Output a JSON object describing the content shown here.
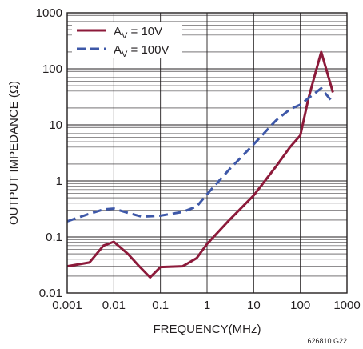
{
  "chart_data": {
    "type": "line",
    "x_scale": "log",
    "y_scale": "log",
    "xlabel": "FREQUENCY(MHz)",
    "ylabel": "OUTPUT IMPEDANCE (Ω)",
    "xlim": [
      0.001,
      1000
    ],
    "ylim": [
      0.01,
      1000
    ],
    "x_ticks": [
      "0.001",
      "0.01",
      "0.1",
      "1",
      "10",
      "100",
      "1000"
    ],
    "y_ticks": [
      "0.01",
      "0.1",
      "1",
      "10",
      "100",
      "1000"
    ],
    "grid": true,
    "legend_position": "top-left",
    "figure_code": "626810 G22",
    "series": [
      {
        "name": "AV = 10V",
        "label_main": "A",
        "label_sub": "V",
        "label_rest": " = 10V",
        "color": "#8c1a3a",
        "style": "solid",
        "points": [
          [
            0.001,
            0.03
          ],
          [
            0.003,
            0.035
          ],
          [
            0.006,
            0.07
          ],
          [
            0.01,
            0.082
          ],
          [
            0.02,
            0.05
          ],
          [
            0.035,
            0.03
          ],
          [
            0.06,
            0.019
          ],
          [
            0.1,
            0.029
          ],
          [
            0.3,
            0.03
          ],
          [
            0.6,
            0.042
          ],
          [
            1,
            0.075
          ],
          [
            3,
            0.2
          ],
          [
            10,
            0.55
          ],
          [
            30,
            1.8
          ],
          [
            60,
            4
          ],
          [
            100,
            6.5
          ],
          [
            150,
            30
          ],
          [
            280,
            200
          ],
          [
            500,
            38
          ]
        ]
      },
      {
        "name": "AV = 100V",
        "label_main": "A",
        "label_sub": "V",
        "label_rest": " = 100V",
        "color": "#3e58a8",
        "style": "dashed",
        "points": [
          [
            0.001,
            0.19
          ],
          [
            0.003,
            0.26
          ],
          [
            0.006,
            0.31
          ],
          [
            0.01,
            0.32
          ],
          [
            0.02,
            0.27
          ],
          [
            0.04,
            0.23
          ],
          [
            0.1,
            0.24
          ],
          [
            0.3,
            0.28
          ],
          [
            0.6,
            0.35
          ],
          [
            1,
            0.58
          ],
          [
            3,
            1.6
          ],
          [
            10,
            4.5
          ],
          [
            30,
            12
          ],
          [
            60,
            19
          ],
          [
            100,
            23
          ],
          [
            150,
            30
          ],
          [
            280,
            45
          ],
          [
            500,
            25
          ]
        ]
      }
    ]
  }
}
